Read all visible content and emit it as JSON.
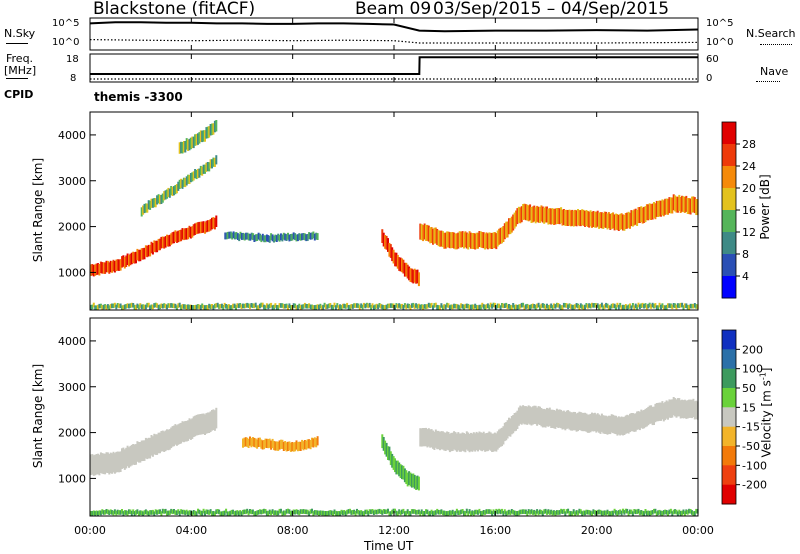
{
  "header": {
    "station": "Blackstone (fitACF)",
    "beam": "Beam 09",
    "date_range": "03/Sep/2015 – 04/Sep/2015"
  },
  "nsky_panel": {
    "left_label": "N.Sky",
    "left_ticks": [
      "10^5",
      "10^0"
    ],
    "right_ticks": [
      "10^5",
      "10^0"
    ],
    "right_label": "N.Search"
  },
  "freq_panel": {
    "left_label_line1": "Freq.",
    "left_label_line2": "[MHz]",
    "left_ticks": [
      "18",
      "8"
    ],
    "right_ticks": [
      "60",
      "0"
    ],
    "right_label": "Nave"
  },
  "cpid_panel": {
    "label": "CPID",
    "program": "themis -3300"
  },
  "axes": {
    "ylabel": "Slant Range [km]",
    "xlabel": "Time UT",
    "y_ticks": [
      "1000",
      "2000",
      "3000",
      "4000"
    ],
    "x_ticks": [
      "00:00",
      "04:00",
      "08:00",
      "12:00",
      "16:00",
      "20:00",
      "00:00"
    ]
  },
  "power_colorbar": {
    "label": "Power [dB]",
    "ticks": [
      "4",
      "8",
      "12",
      "16",
      "20",
      "24",
      "28"
    ],
    "colors": [
      "#0000ff",
      "#2a4fb5",
      "#3e8a86",
      "#55b55a",
      "#e3c21e",
      "#f58a0a",
      "#ee3a0a",
      "#e00000"
    ]
  },
  "velocity_colorbar": {
    "label": "Velocity [m s^-1]",
    "ticks": [
      "200",
      "100",
      "50",
      "15",
      "-15",
      "-50",
      "-100",
      "-200"
    ],
    "colors": [
      "#1030c0",
      "#2b70a8",
      "#3d9a5e",
      "#6ad23a",
      "#c8c8c0",
      "#f2b42a",
      "#f27a0a",
      "#ee4010",
      "#e00000"
    ]
  },
  "chart_data": [
    {
      "type": "line",
      "title": "",
      "xlabel": "",
      "ylabel": "N.Sky",
      "x_range": [
        "00:00",
        "00:00"
      ],
      "series": [
        {
          "name": "N.Sky",
          "x_hours": [
            0,
            1,
            2,
            3,
            4,
            5,
            6,
            7,
            8,
            9,
            10,
            11,
            12,
            13,
            14,
            16,
            18,
            20,
            22,
            24
          ],
          "y_log10": [
            4.4,
            4.6,
            4.6,
            4.5,
            4.5,
            4.4,
            4.4,
            4.3,
            4.3,
            4.4,
            4.4,
            4.3,
            4.2,
            3.1,
            3.0,
            3.1,
            3.1,
            3.2,
            3.1,
            3.3
          ]
        },
        {
          "name": "N.Search",
          "x_hours": [
            0,
            2,
            4,
            6,
            8,
            10,
            12,
            13,
            16,
            20,
            24
          ],
          "y_log10": [
            1.5,
            1.4,
            1.3,
            1.4,
            1.3,
            1.4,
            1.3,
            0.9,
            0.9,
            0.9,
            1.0
          ]
        }
      ]
    },
    {
      "type": "line",
      "title": "",
      "xlabel": "",
      "ylabel": "Freq. [MHz]",
      "series": [
        {
          "name": "Freq.",
          "x_hours": [
            0,
            13,
            13.01,
            24
          ],
          "y": [
            10.5,
            10.5,
            17.5,
            17.5
          ]
        },
        {
          "name": "Nave",
          "x_hours": [
            0,
            24
          ],
          "y": [
            8,
            8
          ]
        }
      ],
      "ylim_left": [
        8,
        18
      ],
      "ylim_right": [
        0,
        60
      ]
    },
    {
      "type": "heatmap",
      "title": "",
      "xlabel": "",
      "ylabel": "Slant Range [km]",
      "colorbar": "Power [dB]",
      "xlim_hours": [
        0,
        24
      ],
      "ylim_km": [
        180,
        4500
      ],
      "grid": false,
      "bands": [
        {
          "x_hours": [
            0,
            1,
            2,
            3,
            4,
            5
          ],
          "y_km": [
            1050,
            1150,
            1400,
            1700,
            1900,
            2100
          ],
          "width_km": 250,
          "power_db": 24
        },
        {
          "x_hours": [
            2,
            3,
            4,
            5
          ],
          "y_km": [
            2350,
            2700,
            3100,
            3450
          ],
          "width_km": 200,
          "power_db": 10
        },
        {
          "x_hours": [
            3.5,
            4.5,
            5
          ],
          "y_km": [
            3700,
            4000,
            4200
          ],
          "width_km": 250,
          "power_db": 12
        },
        {
          "x_hours": [
            5.3,
            7,
            9
          ],
          "y_km": [
            1800,
            1750,
            1800
          ],
          "width_km": 150,
          "power_db": 6
        },
        {
          "x_hours": [
            11.5,
            12,
            12.5,
            13
          ],
          "y_km": [
            1800,
            1300,
            1000,
            850
          ],
          "width_km": 300,
          "power_db": 22
        },
        {
          "x_hours": [
            13,
            14,
            16,
            17,
            19,
            21,
            23,
            24
          ],
          "y_km": [
            1900,
            1700,
            1700,
            2300,
            2200,
            2100,
            2500,
            2450
          ],
          "width_km": 350,
          "power_db": 18
        },
        {
          "x_hours": [
            0,
            24
          ],
          "y_km": [
            260,
            260
          ],
          "width_km": 100,
          "power_db": 10
        }
      ]
    },
    {
      "type": "heatmap",
      "title": "",
      "xlabel": "Time UT",
      "ylabel": "Slant Range [km]",
      "colorbar": "Velocity [m s^-1]",
      "xlim_hours": [
        0,
        24
      ],
      "ylim_km": [
        180,
        4500
      ],
      "grid": false,
      "bands": [
        {
          "x_hours": [
            0,
            1,
            2,
            3,
            4,
            5
          ],
          "y_km": [
            1300,
            1350,
            1600,
            1850,
            2100,
            2300
          ],
          "width_km": 450,
          "velocity": 0
        },
        {
          "x_hours": [
            6,
            7,
            8,
            9
          ],
          "y_km": [
            1800,
            1750,
            1700,
            1800
          ],
          "width_km": 200,
          "velocity": -60
        },
        {
          "x_hours": [
            11.5,
            12,
            12.5,
            13
          ],
          "y_km": [
            1800,
            1300,
            1000,
            850
          ],
          "width_km": 300,
          "velocity": 40
        },
        {
          "x_hours": [
            13,
            14,
            16,
            17,
            19,
            21,
            23,
            24
          ],
          "y_km": [
            1900,
            1800,
            1800,
            2400,
            2250,
            2150,
            2550,
            2500
          ],
          "width_km": 400,
          "velocity": 0
        },
        {
          "x_hours": [
            0,
            24
          ],
          "y_km": [
            260,
            260
          ],
          "width_km": 100,
          "velocity": 20
        }
      ]
    }
  ]
}
